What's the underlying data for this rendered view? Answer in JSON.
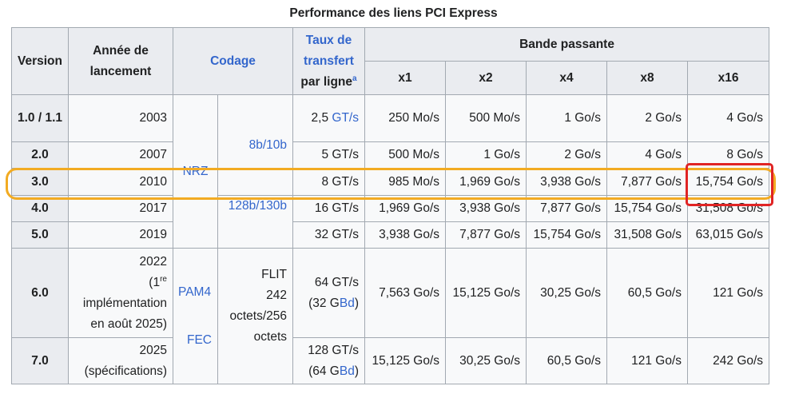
{
  "caption": "Performance des liens PCI Express",
  "headers": {
    "version": "Version",
    "annee": "Année de lancement",
    "codage": "Codage",
    "taux_line1": "Taux de",
    "taux_line2": "transfert",
    "taux_line3": "par ligne",
    "taux_note": "a",
    "bande": "Bande passante",
    "x1": "x1",
    "x2": "x2",
    "x4": "x4",
    "x8": "x8",
    "x16": "x16"
  },
  "rows": [
    {
      "version": "1.0 / 1.1",
      "year": "2003",
      "rate": "2,5",
      "rate_unit": "GT/s",
      "x1": "250 Mo/s",
      "x2": "500 Mo/s",
      "x4": "1 Go/s",
      "x8": "2 Go/s",
      "x16": "4 Go/s"
    },
    {
      "version": "2.0",
      "year": "2007",
      "rate": "5 GT/s",
      "x1": "500 Mo/s",
      "x2": "1 Go/s",
      "x4": "2 Go/s",
      "x8": "4 Go/s",
      "x16": "8 Go/s"
    },
    {
      "version": "3.0",
      "year": "2010",
      "rate": "8 GT/s",
      "x1": "985 Mo/s",
      "x2": "1,969 Go/s",
      "x4": "3,938 Go/s",
      "x8": "7,877 Go/s",
      "x16": "15,754 Go/s"
    },
    {
      "version": "4.0",
      "year": "2017",
      "rate": "16 GT/s",
      "x1": "1,969 Go/s",
      "x2": "3,938 Go/s",
      "x4": "7,877 Go/s",
      "x8": "15,754 Go/s",
      "x16": "31,508 Go/s"
    },
    {
      "version": "5.0",
      "year": "2019",
      "rate": "32 GT/s",
      "x1": "3,938 Go/s",
      "x2": "7,877 Go/s",
      "x4": "15,754 Go/s",
      "x8": "31,508 Go/s",
      "x16": "63,015 Go/s"
    },
    {
      "version": "6.0",
      "year_l1": "2022",
      "year_l2a": "(1",
      "year_l2sup": "re",
      "year_l3": "implémentation",
      "year_l4": "en août 2025)",
      "rate_l1": "64 GT/s",
      "rate_l2a": "(32 G",
      "rate_l2b": "Bd",
      "rate_l2c": ")",
      "x1": "7,563 Go/s",
      "x2": "15,125 Go/s",
      "x4": "30,25 Go/s",
      "x8": "60,5 Go/s",
      "x16": "121 Go/s"
    },
    {
      "version": "7.0",
      "year_l1": "2025",
      "year_l2": "(spécifications)",
      "rate_l1": "128 GT/s",
      "rate_l2a": "(64 G",
      "rate_l2b": "Bd",
      "rate_l2c": ")",
      "x1": "15,125 Go/s",
      "x2": "30,25 Go/s",
      "x4": "60,5 Go/s",
      "x8": "121 Go/s",
      "x16": "242 Go/s"
    }
  ],
  "codage": {
    "nrz": "NRZ",
    "b8b10b": "8b/10b",
    "b128b130b": "128b/130b",
    "pam4": "PAM4",
    "fec": "FEC",
    "flit_l1": "FLIT",
    "flit_l2": "242",
    "flit_l3": "octets/256",
    "flit_l4": "octets"
  },
  "annotations": {
    "row_highlight_color": "#f2ab22",
    "cell_highlight_color": "#e02424"
  }
}
